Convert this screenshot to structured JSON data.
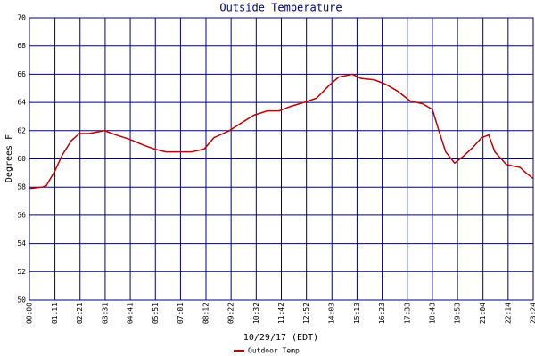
{
  "chart_data": {
    "type": "line",
    "title": "Outside Temperature",
    "ylabel": "Degrees F",
    "xlabel": "10/29/17 (EDT)",
    "x": [
      0,
      35,
      47,
      70,
      92,
      117,
      139,
      166,
      209,
      241,
      278,
      316,
      348,
      380,
      417,
      452,
      487,
      514,
      557,
      594,
      626,
      663,
      696,
      726,
      765,
      800,
      835,
      862,
      900,
      924,
      962,
      992,
      1026,
      1061,
      1096,
      1123,
      1141,
      1160,
      1185,
      1210,
      1235,
      1260,
      1280,
      1297,
      1329,
      1367,
      1384,
      1404
    ],
    "series": [
      {
        "name": "Outdoor Temp",
        "color": "#c00000",
        "values": [
          57.9,
          58.0,
          58.1,
          59.1,
          60.3,
          61.3,
          61.8,
          61.8,
          62.0,
          61.7,
          61.4,
          61.0,
          60.7,
          60.5,
          60.5,
          60.5,
          60.7,
          61.5,
          62.0,
          62.6,
          63.1,
          63.4,
          63.4,
          63.7,
          64.0,
          64.3,
          65.2,
          65.8,
          66.0,
          65.7,
          65.6,
          65.3,
          64.8,
          64.1,
          63.9,
          63.5,
          62.0,
          60.5,
          59.7,
          60.2,
          60.8,
          61.5,
          61.7,
          60.5,
          59.6,
          59.4,
          59.0,
          58.6
        ]
      }
    ],
    "xlim": [
      0,
      1404
    ],
    "xticks": [
      {
        "value": 0,
        "label": "00:00"
      },
      {
        "value": 71,
        "label": "01:11"
      },
      {
        "value": 141,
        "label": "02:21"
      },
      {
        "value": 211,
        "label": "03:31"
      },
      {
        "value": 281,
        "label": "04:41"
      },
      {
        "value": 351,
        "label": "05:51"
      },
      {
        "value": 421,
        "label": "07:01"
      },
      {
        "value": 492,
        "label": "08:12"
      },
      {
        "value": 562,
        "label": "09:22"
      },
      {
        "value": 632,
        "label": "10:32"
      },
      {
        "value": 702,
        "label": "11:42"
      },
      {
        "value": 772,
        "label": "12:52"
      },
      {
        "value": 843,
        "label": "14:03"
      },
      {
        "value": 913,
        "label": "15:13"
      },
      {
        "value": 983,
        "label": "16:23"
      },
      {
        "value": 1053,
        "label": "17:33"
      },
      {
        "value": 1123,
        "label": "18:43"
      },
      {
        "value": 1193,
        "label": "19:53"
      },
      {
        "value": 1264,
        "label": "21:04"
      },
      {
        "value": 1334,
        "label": "22:14"
      },
      {
        "value": 1404,
        "label": "23:24"
      }
    ],
    "ylim": [
      50,
      70
    ],
    "yticks": [
      50,
      52,
      54,
      56,
      58,
      60,
      62,
      64,
      66,
      68,
      70
    ],
    "grid": true
  }
}
